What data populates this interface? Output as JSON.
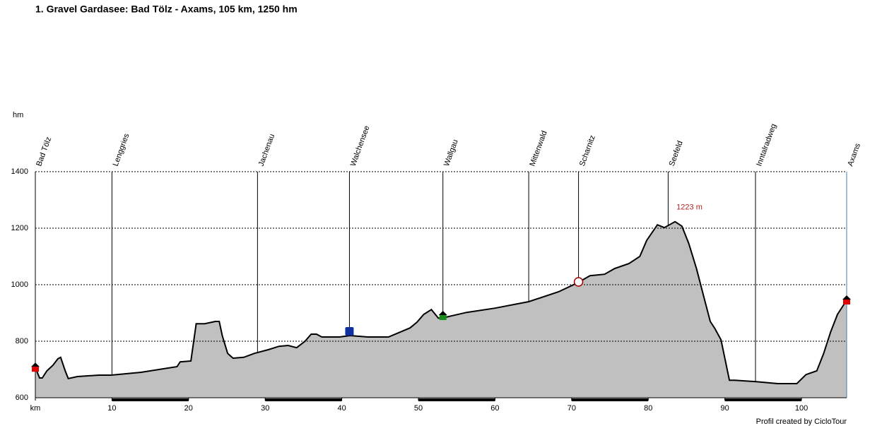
{
  "chart_data": {
    "type": "area",
    "title": "1. Gravel Gardasee: Bad Tölz - Axams, 105 km, 1250 hm",
    "y_label": "hm",
    "credit": "Profil created by CicloTour",
    "annotation": {
      "text": "1223 m",
      "x": 83.5,
      "y": 1223
    },
    "fill_color": "#c0c0c0",
    "line_color": "#000000",
    "grid": true,
    "xlim": [
      0,
      105.9
    ],
    "ylim": [
      600,
      1400
    ],
    "yticks": [
      600,
      800,
      1000,
      1200,
      1400
    ],
    "xticks": [
      {
        "value": 0,
        "label": "km"
      },
      10,
      20,
      30,
      40,
      50,
      60,
      70,
      80,
      90,
      100
    ],
    "waypoints": [
      {
        "name": "Bad Tölz",
        "km": 0
      },
      {
        "name": "Lenggries",
        "km": 10
      },
      {
        "name": "Jachenau",
        "km": 29
      },
      {
        "name": "Walchensee",
        "km": 41
      },
      {
        "name": "Wallgau",
        "km": 53.2
      },
      {
        "name": "Mittenwald",
        "km": 64.4
      },
      {
        "name": "Scharnitz",
        "km": 70.9
      },
      {
        "name": "Seefeld",
        "km": 82.6
      },
      {
        "name": "Inntalradweg",
        "km": 94
      },
      {
        "name": "Axams",
        "km": 105.9
      }
    ],
    "x": [
      0,
      0.55,
      0.9,
      1.5,
      2.3,
      2.95,
      3.3,
      3.9,
      4.3,
      5.5,
      8.3,
      9.9,
      13.8,
      18.5,
      18.9,
      20.3,
      21.0,
      22.1,
      23.5,
      24,
      24.4,
      25.1,
      25.8,
      27.2,
      28.6,
      30.4,
      31.8,
      33.0,
      34.1,
      35.2,
      36.0,
      36.7,
      37.4,
      39.7,
      41.1,
      43.4,
      46.1,
      48.9,
      49.8,
      50.7,
      51.7,
      52.6,
      53.1,
      56.3,
      60.0,
      64.4,
      68.3,
      70.8,
      72.4,
      74.3,
      75.6,
      77.5,
      78.9,
      79.8,
      81.2,
      82.1,
      83.5,
      84.4,
      85.3,
      86.3,
      87.5,
      88.1,
      88.7,
      89.5,
      90.6,
      91.3,
      94.1,
      96.9,
      99.4,
      100.6,
      102,
      102.9,
      103.8,
      104.7,
      105.9
    ],
    "values": [
      707,
      670,
      670,
      695,
      715,
      738,
      743,
      695,
      668,
      675,
      680,
      680,
      690,
      710,
      727,
      730,
      862,
      862,
      870,
      870,
      820,
      757,
      740,
      743,
      757,
      770,
      782,
      785,
      777,
      800,
      825,
      825,
      815,
      815,
      820,
      815,
      815,
      847,
      867,
      895,
      912,
      882,
      882,
      902,
      917,
      940,
      975,
      1007,
      1032,
      1037,
      1057,
      1075,
      1100,
      1157,
      1212,
      1202,
      1223,
      1207,
      1145,
      1057,
      932,
      870,
      845,
      805,
      662,
      662,
      657,
      650,
      650,
      682,
      695,
      757,
      832,
      895,
      945
    ]
  }
}
